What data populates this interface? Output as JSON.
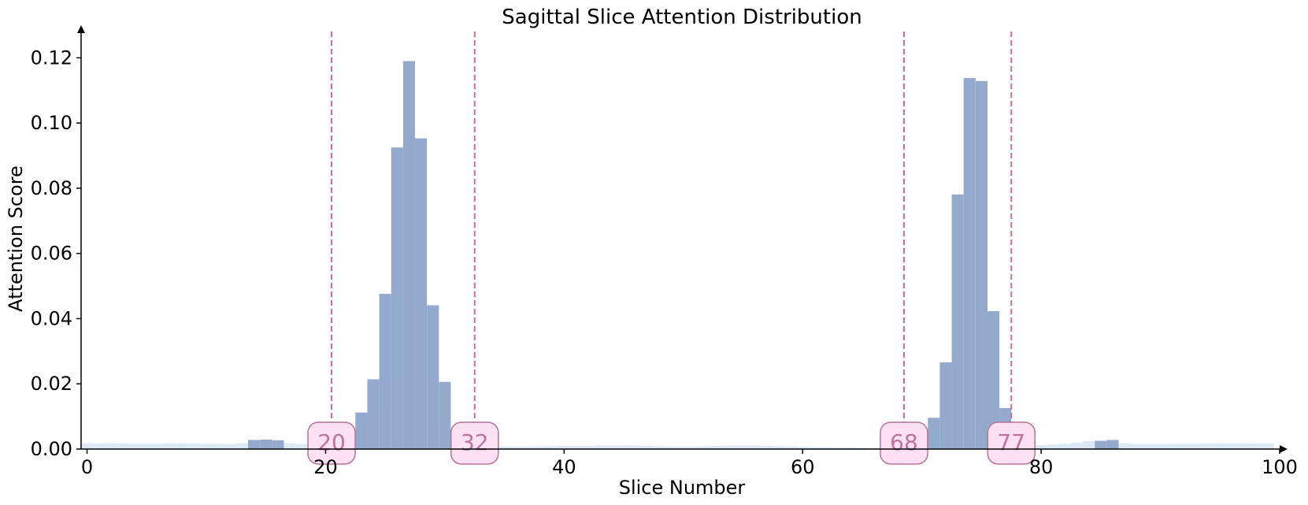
{
  "chart_data": {
    "type": "bar",
    "title": "Sagittal Slice Attention Distribution",
    "xlabel": "Slice Number",
    "ylabel": "Attention Score",
    "xlim": [
      -0.5,
      100
    ],
    "ylim": [
      0,
      0.13
    ],
    "xticks": [
      0,
      20,
      40,
      60,
      80,
      100
    ],
    "yticks": [
      0.0,
      0.02,
      0.04,
      0.06,
      0.08,
      0.1,
      0.12
    ],
    "grid": false,
    "colors": {
      "primary": "#94aacd",
      "background_bar": "#dde9f6",
      "marker": "#cc6d98",
      "marker_box_fill": "#fde0f1",
      "marker_box_edge": "#b7749a",
      "marker_text": "#c0739d"
    },
    "markers": [
      {
        "x": 20.5,
        "label": "20"
      },
      {
        "x": 32.5,
        "label": "32"
      },
      {
        "x": 68.5,
        "label": "68"
      },
      {
        "x": 77.5,
        "label": "77"
      }
    ],
    "series": [
      {
        "values": [
          0.0018,
          0.0017,
          0.0018,
          0.0017,
          0.0016,
          0.0016,
          0.0016,
          0.0017,
          0.0017,
          0.0017,
          0.0016,
          0.0016,
          0.0015,
          0.0018,
          0.0025,
          0.0028,
          0.0026,
          0.0018,
          0.0015,
          0.0012,
          0.0008,
          0.0005,
          0.0003,
          0.0002,
          0.0002,
          0.0002,
          0.0002,
          0.0002,
          0.0002,
          0.0002,
          0.0002,
          0.0002,
          0.0004,
          0.0006,
          0.0008,
          0.0008,
          0.0008,
          0.0008,
          0.0009,
          0.0009,
          0.001,
          0.001,
          0.001,
          0.0011,
          0.0011,
          0.0011,
          0.0011,
          0.001,
          0.0009,
          0.0008,
          0.0008,
          0.0008,
          0.0009,
          0.001,
          0.0011,
          0.0011,
          0.0011,
          0.001,
          0.0009,
          0.0008,
          0.0007,
          0.0006,
          0.0006,
          0.0005,
          0.0005,
          0.0004,
          0.0003,
          0.0002,
          0.0002,
          0.0002,
          0.0002,
          0.0002,
          0.0002,
          0.0002,
          0.0002,
          0.0002,
          0.0003,
          0.0005,
          0.0008,
          0.001,
          0.0012,
          0.0014,
          0.0016,
          0.0019,
          0.0024,
          0.0026,
          0.0024,
          0.0018,
          0.0015,
          0.0015,
          0.0015,
          0.0016,
          0.0016,
          0.0016,
          0.0017,
          0.0017,
          0.0017,
          0.0017,
          0.0017,
          0.0017
        ],
        "highlight": [
          {
            "x": 14,
            "value": 0.0028
          },
          {
            "x": 15,
            "value": 0.0029
          },
          {
            "x": 16,
            "value": 0.0027
          },
          {
            "x": 22,
            "value": 0.0012
          },
          {
            "x": 23,
            "value": 0.0112
          },
          {
            "x": 24,
            "value": 0.0214
          },
          {
            "x": 25,
            "value": 0.0476
          },
          {
            "x": 26,
            "value": 0.0925
          },
          {
            "x": 27,
            "value": 0.119
          },
          {
            "x": 28,
            "value": 0.0953
          },
          {
            "x": 29,
            "value": 0.0441
          },
          {
            "x": 30,
            "value": 0.0206
          },
          {
            "x": 70,
            "value": 0.002
          },
          {
            "x": 71,
            "value": 0.0096
          },
          {
            "x": 72,
            "value": 0.0266
          },
          {
            "x": 73,
            "value": 0.0781
          },
          {
            "x": 74,
            "value": 0.1138
          },
          {
            "x": 75,
            "value": 0.1129
          },
          {
            "x": 76,
            "value": 0.0423
          },
          {
            "x": 77,
            "value": 0.0126
          },
          {
            "x": 85,
            "value": 0.0025
          },
          {
            "x": 86,
            "value": 0.0028
          }
        ]
      }
    ]
  }
}
